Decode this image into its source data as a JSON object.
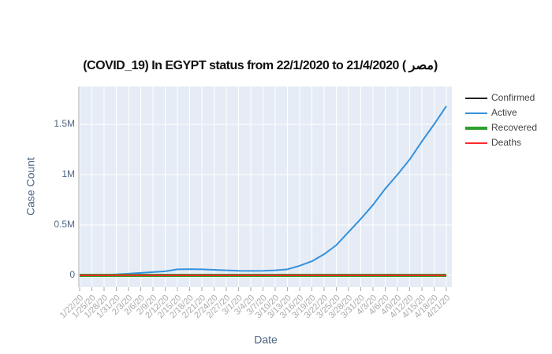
{
  "chart_data": {
    "type": "line",
    "title": "(COVID_19) In EGYPT status from 22/1/2020 to 21/4/2020 ( مصر)",
    "x_label": "Date",
    "y_label": "Case Count",
    "categories": [
      "1/22/20",
      "1/25/20",
      "1/28/20",
      "1/31/20",
      "2/3/20",
      "2/6/20",
      "2/9/20",
      "2/12/20",
      "2/15/20",
      "2/18/20",
      "2/21/20",
      "2/24/20",
      "2/27/20",
      "3/1/20",
      "3/4/20",
      "3/7/20",
      "3/10/20",
      "3/13/20",
      "3/16/20",
      "3/19/20",
      "3/22/20",
      "3/25/20",
      "3/28/20",
      "3/31/20",
      "4/3/20",
      "4/6/20",
      "4/9/20",
      "4/12/20",
      "4/15/20",
      "4/18/20",
      "4/21/20"
    ],
    "series": [
      {
        "name": "Confirmed",
        "color": "#222222",
        "width": 2,
        "values": [
          0,
          0,
          0,
          0,
          0,
          0,
          0,
          0,
          0,
          0,
          0,
          0,
          0,
          0,
          0,
          0,
          0,
          0,
          0,
          0,
          0,
          0,
          0,
          0,
          0,
          0,
          0,
          0,
          0,
          0,
          0
        ]
      },
      {
        "name": "Active",
        "color": "#3591dc",
        "width": 2,
        "values": [
          0,
          2000,
          5000,
          10000,
          17000,
          25000,
          32000,
          40000,
          60000,
          62000,
          60000,
          55000,
          50000,
          45000,
          44000,
          45000,
          50000,
          60000,
          95000,
          140000,
          210000,
          300000,
          430000,
          560000,
          700000,
          860000,
          1000000,
          1150000,
          1330000,
          1500000,
          1680000
        ]
      },
      {
        "name": "Recovered",
        "color": "#2ca02c",
        "width": 4,
        "values": [
          0,
          0,
          0,
          0,
          0,
          0,
          0,
          0,
          0,
          0,
          0,
          0,
          0,
          0,
          0,
          0,
          0,
          0,
          0,
          0,
          0,
          0,
          0,
          0,
          0,
          0,
          0,
          0,
          0,
          0,
          0
        ]
      },
      {
        "name": "Deaths",
        "color": "#ff2a2a",
        "width": 2,
        "values": [
          0,
          0,
          0,
          0,
          0,
          0,
          0,
          0,
          0,
          0,
          0,
          0,
          0,
          0,
          0,
          0,
          0,
          0,
          0,
          0,
          0,
          0,
          0,
          0,
          0,
          0,
          0,
          0,
          0,
          0,
          0
        ]
      }
    ],
    "ylim": [
      -117000,
      1875000
    ],
    "yticks": [
      0,
      {
        "value": 500000,
        "label": "0.5M"
      },
      {
        "value": 1000000,
        "label": "1M"
      },
      {
        "value": 1500000,
        "label": "1.5M"
      }
    ],
    "grid": true
  }
}
